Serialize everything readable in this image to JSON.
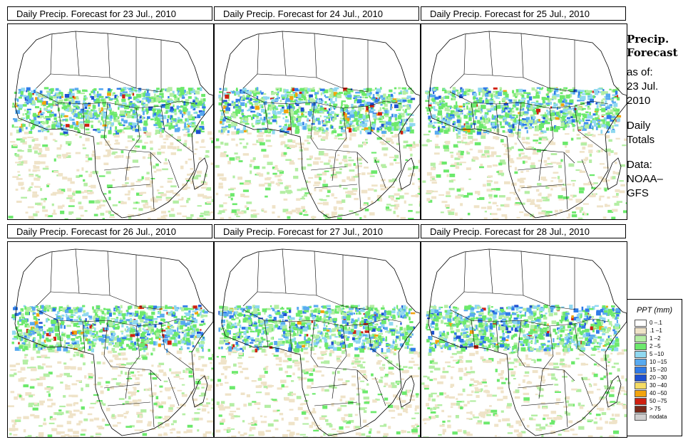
{
  "panels": [
    {
      "title": "Daily Precip. Forecast for  23 Jul., 2010"
    },
    {
      "title": "Daily Precip. Forecast for  24 Jul., 2010"
    },
    {
      "title": "Daily Precip. Forecast for  25 Jul., 2010"
    },
    {
      "title": "Daily Precip. Forecast for  26 Jul., 2010"
    },
    {
      "title": "Daily Precip. Forecast for  27 Jul., 2010"
    },
    {
      "title": "Daily Precip. Forecast for  28 Jul., 2010"
    }
  ],
  "sidebar": {
    "heading1": "Precip.",
    "heading2": "Forecast",
    "asof1": "as of:",
    "asof2": "23 Jul.",
    "asof3": "2010",
    "daily1": "Daily",
    "daily2": "Totals",
    "data1": "Data:",
    "data2": "NOAA–",
    "data3": "GFS"
  },
  "legend": {
    "title": "PPT (mm)",
    "items": [
      {
        "label": "0 –.1",
        "color": "#ffffff"
      },
      {
        "label": ".1 –1",
        "color": "#efe3c8"
      },
      {
        "label": "1 –2",
        "color": "#b4eea4"
      },
      {
        "label": "2 –5",
        "color": "#6ce96c"
      },
      {
        "label": "5 –10",
        "color": "#8fd8f0"
      },
      {
        "label": "10 –15",
        "color": "#58aaf0"
      },
      {
        "label": "15 –20",
        "color": "#2f7be8"
      },
      {
        "label": "20 –30",
        "color": "#1e50d0"
      },
      {
        "label": "30 –40",
        "color": "#f5dc64"
      },
      {
        "label": "40 –50",
        "color": "#f2a40e"
      },
      {
        "label": "50 –75",
        "color": "#d02010"
      },
      {
        "label": "> 75",
        "color": "#7a2a1a"
      },
      {
        "label": "nodata",
        "color": "#cfcfcf"
      }
    ]
  }
}
